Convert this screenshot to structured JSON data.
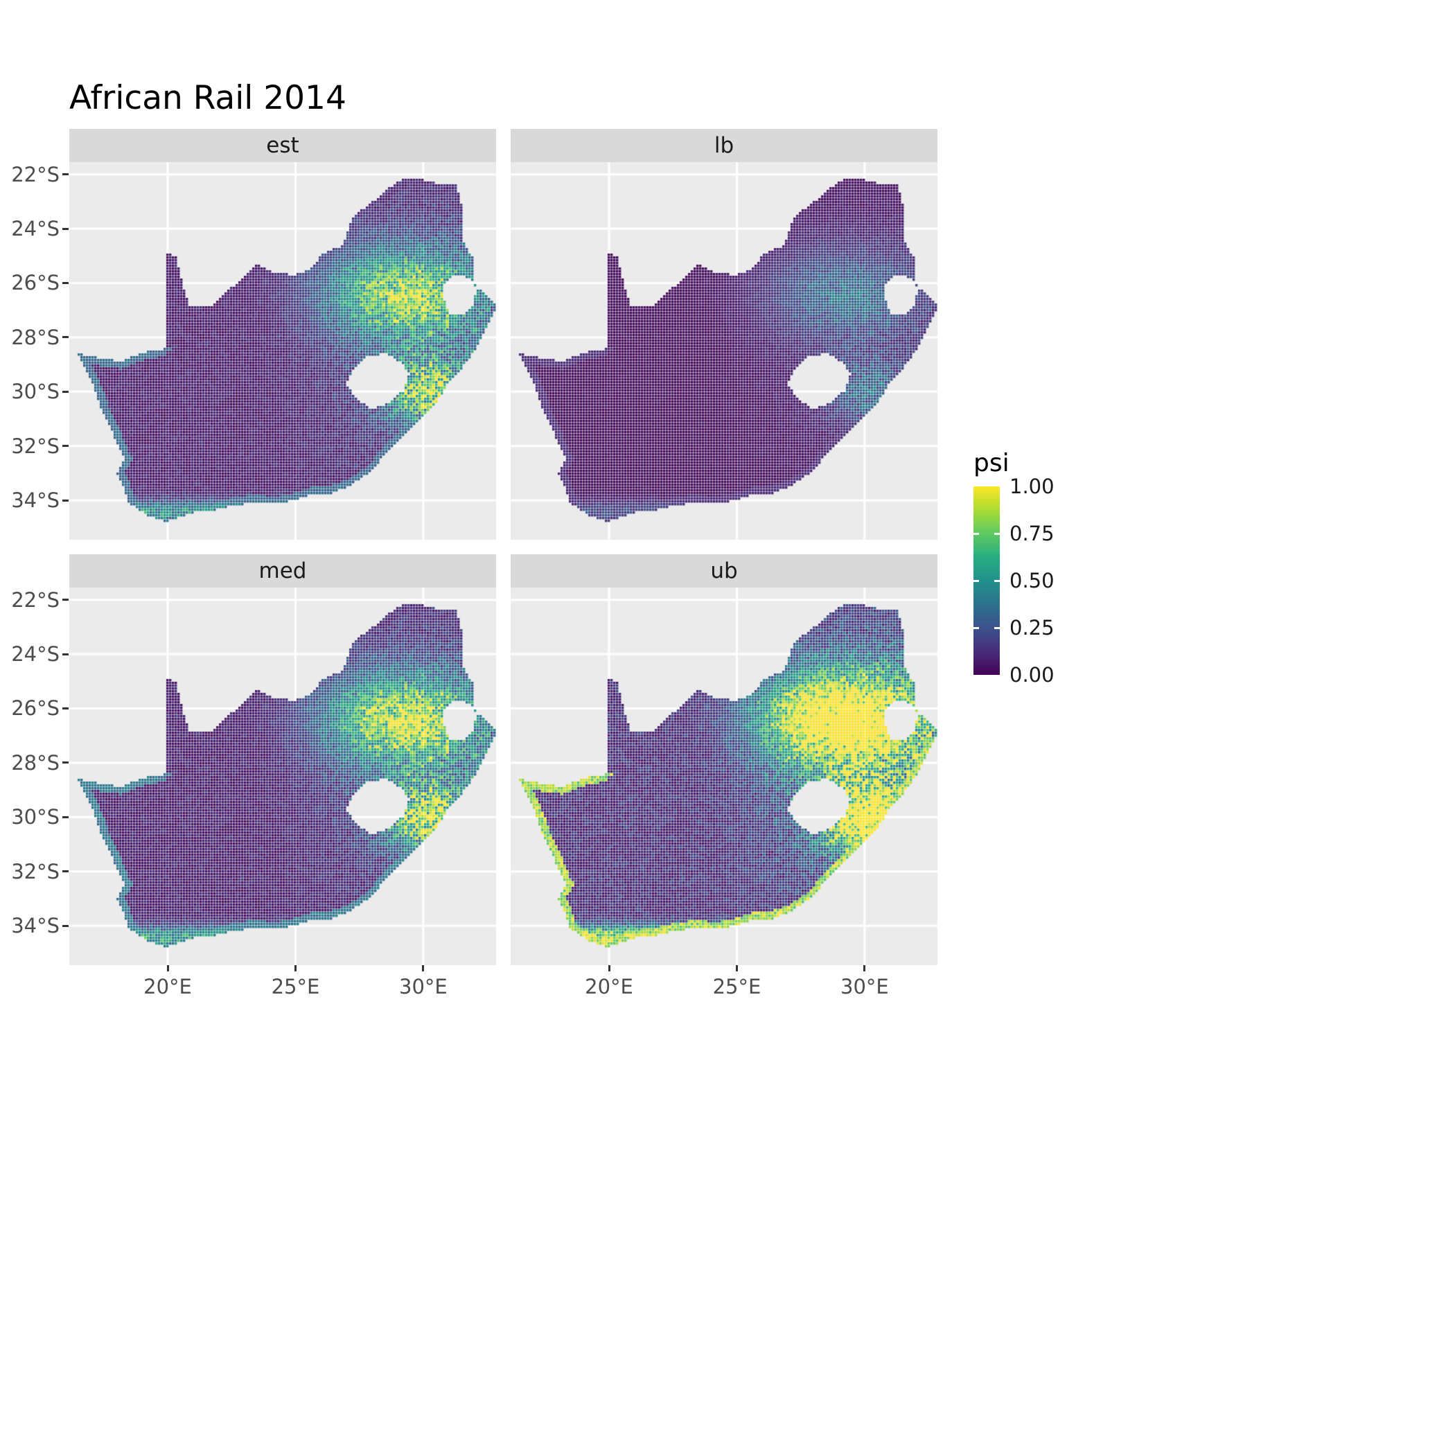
{
  "title": "African Rail 2014",
  "facets": [
    {
      "label": "est"
    },
    {
      "label": "lb"
    },
    {
      "label": "med"
    },
    {
      "label": "ub"
    }
  ],
  "axes": {
    "x_ticks": [
      {
        "label": "20°E",
        "lon": 20
      },
      {
        "label": "25°E",
        "lon": 25
      },
      {
        "label": "30°E",
        "lon": 30
      }
    ],
    "y_ticks": [
      {
        "label": "22°S",
        "lat": -22
      },
      {
        "label": "24°S",
        "lat": -24
      },
      {
        "label": "26°S",
        "lat": -26
      },
      {
        "label": "28°S",
        "lat": -28
      },
      {
        "label": "30°S",
        "lat": -30
      },
      {
        "label": "32°S",
        "lat": -32
      },
      {
        "label": "34°S",
        "lat": -34
      }
    ]
  },
  "legend": {
    "title": "psi",
    "ticks": [
      {
        "label": "1.00",
        "value": 1.0
      },
      {
        "label": "0.75",
        "value": 0.75
      },
      {
        "label": "0.50",
        "value": 0.5
      },
      {
        "label": "0.25",
        "value": 0.25
      },
      {
        "label": "0.00",
        "value": 0.0
      }
    ]
  },
  "colors": {
    "background": "#FFFFFF",
    "panel_bg": "#EBEBEB",
    "strip_bg": "#D9D9D9",
    "grid": "#FFFFFF",
    "axis_text": "#4D4D4D",
    "strip_text": "#1A1A1A",
    "tick_mark": "#333333"
  },
  "palette": [
    "#440154",
    "#472D7B",
    "#3B528B",
    "#2C728E",
    "#21918C",
    "#27AD81",
    "#5EC962",
    "#AADC32",
    "#FDE725"
  ],
  "map": {
    "lon_domain": [
      16.15,
      32.85
    ],
    "lat_domain": [
      -35.45,
      -21.55
    ],
    "outer": [
      [
        16.45,
        -28.58
      ],
      [
        17.25,
        -28.75
      ],
      [
        18.2,
        -28.88
      ],
      [
        19.25,
        -28.5
      ],
      [
        19.98,
        -28.42
      ],
      [
        19.98,
        -24.88
      ],
      [
        20.32,
        -25.05
      ],
      [
        20.48,
        -25.6
      ],
      [
        20.62,
        -26.2
      ],
      [
        20.85,
        -26.82
      ],
      [
        21.7,
        -26.85
      ],
      [
        22.25,
        -26.35
      ],
      [
        22.85,
        -25.95
      ],
      [
        23.5,
        -25.32
      ],
      [
        24.2,
        -25.62
      ],
      [
        24.95,
        -25.72
      ],
      [
        25.6,
        -25.48
      ],
      [
        26.1,
        -24.9
      ],
      [
        26.88,
        -24.62
      ],
      [
        27.2,
        -23.62
      ],
      [
        28.05,
        -23.0
      ],
      [
        29.05,
        -22.22
      ],
      [
        29.68,
        -22.15
      ],
      [
        30.5,
        -22.32
      ],
      [
        31.3,
        -22.4
      ],
      [
        31.6,
        -23.5
      ],
      [
        31.52,
        -24.4
      ],
      [
        31.95,
        -25.1
      ],
      [
        32.02,
        -25.65
      ],
      [
        31.97,
        -25.95
      ],
      [
        32.15,
        -26.2
      ],
      [
        32.9,
        -26.85
      ],
      [
        32.55,
        -27.55
      ],
      [
        32.2,
        -28.2
      ],
      [
        31.75,
        -28.9
      ],
      [
        31.05,
        -29.6
      ],
      [
        30.68,
        -30.2
      ],
      [
        30.0,
        -30.95
      ],
      [
        29.25,
        -31.6
      ],
      [
        28.5,
        -32.35
      ],
      [
        27.9,
        -33.0
      ],
      [
        27.1,
        -33.5
      ],
      [
        26.4,
        -33.75
      ],
      [
        25.65,
        -33.8
      ],
      [
        25.0,
        -34.0
      ],
      [
        24.2,
        -34.15
      ],
      [
        23.4,
        -34.08
      ],
      [
        22.6,
        -34.2
      ],
      [
        21.9,
        -34.35
      ],
      [
        21.1,
        -34.45
      ],
      [
        20.5,
        -34.6
      ],
      [
        19.98,
        -34.8
      ],
      [
        19.3,
        -34.6
      ],
      [
        18.82,
        -34.3
      ],
      [
        18.45,
        -34.08
      ],
      [
        18.3,
        -33.6
      ],
      [
        18.0,
        -33.0
      ],
      [
        18.32,
        -32.5
      ],
      [
        18.1,
        -32.1
      ],
      [
        17.85,
        -31.5
      ],
      [
        17.4,
        -30.6
      ],
      [
        17.05,
        -29.7
      ]
    ],
    "holes": {
      "lesotho": [
        [
          27.0,
          -29.7
        ],
        [
          27.35,
          -29.1
        ],
        [
          27.85,
          -28.7
        ],
        [
          28.55,
          -28.6
        ],
        [
          29.15,
          -28.95
        ],
        [
          29.45,
          -29.35
        ],
        [
          29.25,
          -29.95
        ],
        [
          28.7,
          -30.4
        ],
        [
          28.05,
          -30.65
        ],
        [
          27.45,
          -30.35
        ]
      ],
      "eswatini": [
        [
          30.8,
          -26.1
        ],
        [
          31.15,
          -25.75
        ],
        [
          31.55,
          -25.72
        ],
        [
          31.95,
          -25.95
        ],
        [
          32.1,
          -26.25
        ],
        [
          31.95,
          -26.8
        ],
        [
          31.55,
          -27.2
        ],
        [
          31.1,
          -27.2
        ],
        [
          30.85,
          -26.75
        ]
      ]
    }
  },
  "facet_render": [
    {
      "name": "est",
      "gain": 1.0,
      "coast": 0.38
    },
    {
      "name": "lb",
      "gain": 0.42,
      "coast": 0.12
    },
    {
      "name": "med",
      "gain": 1.1,
      "coast": 0.45
    },
    {
      "name": "ub",
      "gain": 1.75,
      "coast": 1.0
    }
  ],
  "chart_data": {
    "type": "heatmap",
    "subtype": "faceted_raster_map",
    "title": "African Rail 2014",
    "region": "South Africa",
    "facets": [
      "est",
      "lb",
      "med",
      "ub"
    ],
    "x_axis": {
      "tick_labels": [
        "20°E",
        "25°E",
        "30°E"
      ],
      "tick_values": [
        20,
        25,
        30
      ],
      "range_lon": [
        16.15,
        32.85
      ]
    },
    "y_axis": {
      "tick_labels": [
        "22°S",
        "24°S",
        "26°S",
        "28°S",
        "30°S",
        "32°S",
        "34°S"
      ],
      "tick_values": [
        -22,
        -24,
        -26,
        -28,
        -30,
        -32,
        -34
      ],
      "range_lat": [
        -35.45,
        -21.55
      ]
    },
    "legend": {
      "title": "psi",
      "tick_labels": [
        "0.00",
        "0.25",
        "0.50",
        "0.75",
        "1.00"
      ],
      "tick_values": [
        0,
        0.25,
        0.5,
        0.75,
        1.0
      ],
      "range": [
        0,
        1
      ],
      "palette": "viridis",
      "position": "right"
    },
    "grid": true,
    "facet_patterns": [
      {
        "name": "est",
        "summary": "Mostly low psi (<0.1) in the west and interior; elevated psi 0.5-0.9 in the northeast (~26-28S, 27-31E), a bright belt east/southeast of Lesotho (~30S, 30E) and a narrow high band along the south coast (~34.5S)."
      },
      {
        "name": "lb",
        "summary": "Lower bound: darkest panel; only moderate psi 0.3-0.6 in the northeast cluster and the belt east of Lesotho; coasts mostly low."
      },
      {
        "name": "med",
        "summary": "Similar spatial pattern to est with slightly brighter northeast cluster and south-coast band."
      },
      {
        "name": "ub",
        "summary": "Upper bound: extensive high psi 0.8-1.0 across the northeast and KwaZulu-Natal and a continuous near-1.0 yellow band along the entire coastline."
      }
    ],
    "holes_no_data": [
      "Lesotho",
      "Eswatini"
    ]
  }
}
